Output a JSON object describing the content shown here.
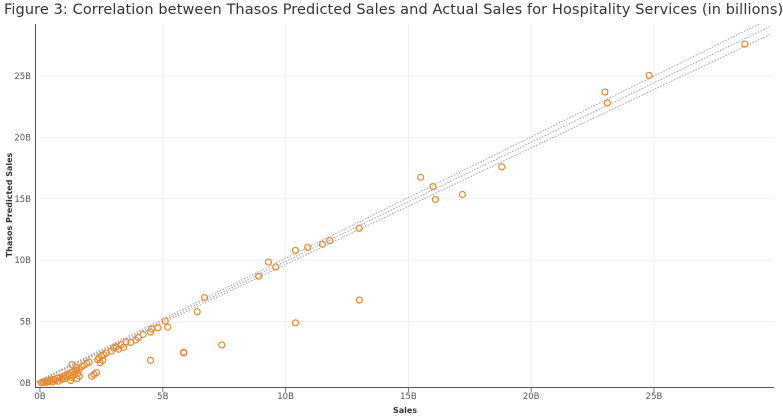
{
  "chart_data": {
    "type": "scatter",
    "title": "Figure 3: Correlation between Thasos Predicted Sales and Actual Sales for Hospitality Services (in billions)",
    "xlabel": "Sales",
    "ylabel": "Thasos Predicted Sales",
    "xlim": [
      0,
      30
    ],
    "ylim": [
      0,
      29
    ],
    "x_ticks": [
      0,
      5,
      10,
      15,
      20,
      25
    ],
    "x_tick_labels": [
      "0B",
      "5B",
      "10B",
      "15B",
      "20B",
      "25B"
    ],
    "y_ticks": [
      0,
      5,
      10,
      15,
      20,
      25
    ],
    "y_tick_labels": [
      "0B",
      "5B",
      "10B",
      "15B",
      "20B",
      "25B"
    ],
    "grid": true,
    "legend": "none",
    "marker_color": "#e8872a",
    "trend_color": "#9a9a9a",
    "trend_lines": [
      {
        "slope": 0.95,
        "intercept": 0.15
      },
      {
        "slope": 0.97,
        "intercept": 0.2
      },
      {
        "slope": 0.99,
        "intercept": 0.25
      }
    ],
    "points": [
      [
        0.05,
        0.02
      ],
      [
        0.12,
        0.06
      ],
      [
        0.18,
        0.1
      ],
      [
        0.25,
        0.05
      ],
      [
        0.3,
        0.18
      ],
      [
        0.38,
        0.12
      ],
      [
        0.45,
        0.25
      ],
      [
        0.5,
        0.08
      ],
      [
        0.55,
        0.3
      ],
      [
        0.62,
        0.22
      ],
      [
        0.7,
        0.4
      ],
      [
        0.75,
        0.15
      ],
      [
        0.82,
        0.45
      ],
      [
        0.9,
        0.3
      ],
      [
        0.95,
        0.55
      ],
      [
        1.0,
        0.35
      ],
      [
        1.05,
        0.65
      ],
      [
        1.1,
        0.5
      ],
      [
        1.15,
        0.75
      ],
      [
        1.2,
        0.6
      ],
      [
        1.25,
        0.85
      ],
      [
        1.3,
        0.45
      ],
      [
        1.35,
        0.95
      ],
      [
        1.4,
        0.7
      ],
      [
        1.45,
        1.05
      ],
      [
        1.5,
        1.25
      ],
      [
        1.55,
        0.8
      ],
      [
        1.6,
        1.15
      ],
      [
        1.7,
        1.35
      ],
      [
        1.25,
        0.2
      ],
      [
        1.5,
        0.35
      ],
      [
        1.6,
        0.55
      ],
      [
        1.3,
        1.5
      ],
      [
        1.8,
        1.45
      ],
      [
        1.9,
        1.6
      ],
      [
        2.0,
        1.7
      ],
      [
        2.1,
        0.55
      ],
      [
        2.2,
        0.7
      ],
      [
        2.3,
        0.85
      ],
      [
        2.35,
        1.9
      ],
      [
        2.4,
        2.05
      ],
      [
        2.45,
        1.65
      ],
      [
        2.5,
        2.2
      ],
      [
        2.55,
        1.85
      ],
      [
        2.6,
        2.3
      ],
      [
        2.7,
        2.45
      ],
      [
        2.9,
        2.6
      ],
      [
        3.0,
        2.85
      ],
      [
        3.1,
        2.95
      ],
      [
        3.2,
        2.75
      ],
      [
        3.3,
        3.1
      ],
      [
        3.4,
        2.9
      ],
      [
        3.5,
        3.35
      ],
      [
        3.7,
        3.3
      ],
      [
        3.9,
        3.5
      ],
      [
        4.0,
        3.7
      ],
      [
        4.2,
        3.95
      ],
      [
        4.5,
        4.15
      ],
      [
        4.55,
        4.4
      ],
      [
        4.5,
        1.85
      ],
      [
        4.8,
        4.5
      ],
      [
        5.1,
        5.05
      ],
      [
        5.2,
        4.55
      ],
      [
        5.85,
        2.45
      ],
      [
        5.85,
        2.5
      ],
      [
        6.4,
        5.8
      ],
      [
        6.7,
        6.95
      ],
      [
        7.4,
        3.1
      ],
      [
        8.9,
        8.7
      ],
      [
        9.3,
        9.85
      ],
      [
        9.6,
        9.45
      ],
      [
        10.4,
        10.8
      ],
      [
        10.4,
        4.9
      ],
      [
        10.9,
        11.05
      ],
      [
        11.5,
        11.3
      ],
      [
        11.8,
        11.6
      ],
      [
        13.0,
        12.6
      ],
      [
        13.0,
        6.75
      ],
      [
        15.5,
        16.75
      ],
      [
        16.0,
        16.0
      ],
      [
        16.1,
        14.95
      ],
      [
        17.2,
        15.35
      ],
      [
        18.8,
        17.6
      ],
      [
        23.0,
        23.7
      ],
      [
        23.1,
        22.8
      ],
      [
        24.8,
        25.05
      ],
      [
        28.7,
        27.6
      ]
    ]
  }
}
